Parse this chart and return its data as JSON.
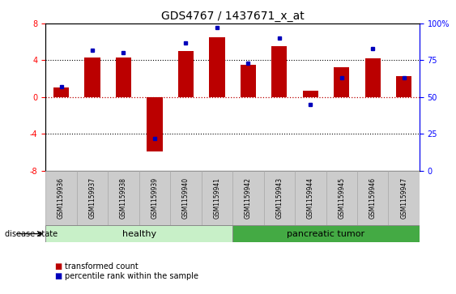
{
  "title": "GDS4767 / 1437671_x_at",
  "samples": [
    "GSM1159936",
    "GSM1159937",
    "GSM1159938",
    "GSM1159939",
    "GSM1159940",
    "GSM1159941",
    "GSM1159942",
    "GSM1159943",
    "GSM1159944",
    "GSM1159945",
    "GSM1159946",
    "GSM1159947"
  ],
  "bar_values": [
    1.0,
    4.3,
    4.3,
    -5.9,
    5.0,
    6.5,
    3.5,
    5.5,
    0.7,
    3.2,
    4.2,
    2.3
  ],
  "dot_values": [
    57,
    82,
    80,
    22,
    87,
    97,
    73,
    90,
    45,
    63,
    83,
    63
  ],
  "bar_color": "#bb0000",
  "dot_color": "#0000bb",
  "ylim_left": [
    -8,
    8
  ],
  "ylim_right": [
    0,
    100
  ],
  "yticks_left": [
    -8,
    -4,
    0,
    4,
    8
  ],
  "yticks_right": [
    0,
    25,
    50,
    75,
    100
  ],
  "ytick_labels_right": [
    "0",
    "25",
    "50",
    "75",
    "100%"
  ],
  "hline_dotted_vals": [
    -4,
    4
  ],
  "hline_red_val": 0,
  "healthy_color_light": "#c8f0c8",
  "healthy_color_dark": "#88cc88",
  "tumor_color_light": "#88cc88",
  "tumor_color_dark": "#44aa44",
  "sample_bg_color": "#cccccc",
  "disease_state_label": "disease state",
  "legend_bar_label": "transformed count",
  "legend_dot_label": "percentile rank within the sample",
  "title_fontsize": 10,
  "tick_fontsize": 7,
  "label_fontsize": 5.5,
  "group_fontsize": 8,
  "legend_fontsize": 7
}
